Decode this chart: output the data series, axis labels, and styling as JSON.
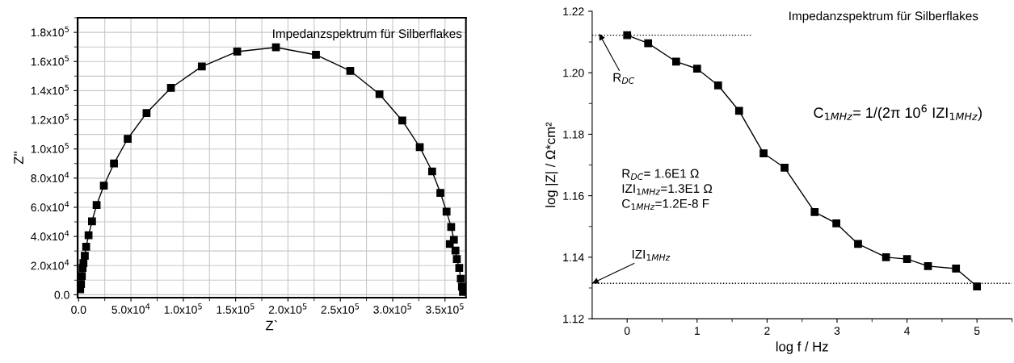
{
  "chart_data": [
    {
      "type": "line",
      "title": "Impedanzspektrum für Silberflakes",
      "xlabel": "Z`",
      "ylabel": "Z''",
      "xlim": [
        -1000,
        370000
      ],
      "ylim": [
        -2000,
        190000
      ],
      "grid": true,
      "marker": "square",
      "line_style": "solid",
      "xticks": [
        {
          "value": 0,
          "label": "0.0"
        },
        {
          "value": 50000,
          "label": "5.0x10$^{4}$"
        },
        {
          "value": 100000,
          "label": "1.0x10$^{5}$"
        },
        {
          "value": 150000,
          "label": "1.5x10$^{5}$"
        },
        {
          "value": 200000,
          "label": "2.0x10$^{5}$"
        },
        {
          "value": 250000,
          "label": "2.5x10$^{5}$"
        },
        {
          "value": 300000,
          "label": "3.0x10$^{5}$"
        },
        {
          "value": 350000,
          "label": "3.5x10$^{5}$"
        }
      ],
      "yticks": [
        {
          "value": 0,
          "label": "0.0"
        },
        {
          "value": 20000,
          "label": "2.0x10$^{4}$"
        },
        {
          "value": 40000,
          "label": "4.0x10$^{4}$"
        },
        {
          "value": 60000,
          "label": "6.0x10$^{4}$"
        },
        {
          "value": 80000,
          "label": "8.0x10$^{4}$"
        },
        {
          "value": 100000,
          "label": "1.0x10$^{5}$"
        },
        {
          "value": 120000,
          "label": "1.2x10$^{5}$"
        },
        {
          "value": 140000,
          "label": "1.4x10$^{5}$"
        },
        {
          "value": 160000,
          "label": "1.6x10$^{5}$"
        },
        {
          "value": 180000,
          "label": "1.8x10$^{5}$"
        }
      ],
      "series": [
        {
          "color": "#000000",
          "x": [
            1500,
            2300,
            3100,
            3800,
            4600,
            5900,
            7200,
            9500,
            12800,
            17200,
            24100,
            33800,
            46900,
            64900,
            88200,
            117700,
            151500,
            188500,
            226700,
            259500,
            287400,
            309200,
            325900,
            337700,
            345600,
            351500,
            355900,
            358500,
            354600,
            360000,
            361300,
            363600,
            365100,
            366200,
            367200
          ],
          "values": [
            3700,
            7400,
            12900,
            18400,
            21700,
            26700,
            32900,
            40800,
            50400,
            61600,
            74800,
            90100,
            107000,
            124700,
            141900,
            156600,
            166800,
            169700,
            164600,
            153600,
            137600,
            119500,
            101300,
            84600,
            69900,
            57000,
            46500,
            37700,
            34800,
            30300,
            24500,
            18400,
            11000,
            5500,
            1900
          ]
        }
      ]
    },
    {
      "type": "line",
      "title": "Impedanzspektrum für Silberflakes",
      "xlabel": "log f / Hz",
      "ylabel": "log |Z| / Ω*cm²",
      "xlim": [
        -0.5,
        5.5
      ],
      "ylim": [
        1.12,
        1.22
      ],
      "grid": false,
      "xticks": [
        0,
        1,
        2,
        3,
        4,
        5
      ],
      "yticks": [
        {
          "value": 1.12,
          "label": "1.12"
        },
        {
          "value": 1.14,
          "label": "1.14"
        },
        {
          "value": 1.16,
          "label": "1.16"
        },
        {
          "value": 1.18,
          "label": "1.18"
        },
        {
          "value": 1.2,
          "label": "1.20"
        },
        {
          "value": 1.22,
          "label": "1.22"
        }
      ],
      "series": [
        {
          "color": "#000000",
          "marker": "square",
          "line_style": "solid",
          "x": [
            0,
            0.3,
            0.7,
            1.0,
            1.3,
            1.6,
            1.95,
            2.25,
            2.68,
            2.99,
            3.3,
            3.7,
            4.0,
            4.3,
            4.7,
            5.0
          ],
          "values": [
            1.2122,
            1.2096,
            1.2036,
            1.2013,
            1.1959,
            1.1876,
            1.1738,
            1.1691,
            1.1547,
            1.151,
            1.1443,
            1.14,
            1.1394,
            1.1371,
            1.1363,
            1.1305
          ]
        },
        {
          "color": "#000000",
          "marker": "none",
          "line_style": "dotted",
          "x": [
            -0.5,
            1.79
          ],
          "values": [
            1.2122,
            1.2122
          ]
        }
      ],
      "ref_lines": [
        {
          "axis": "y",
          "value": 1.1315,
          "line_style": "dotted",
          "color": "#000000"
        }
      ],
      "annotations": [
        {
          "text": "R$_{DC}$",
          "x": -0.4,
          "y": 1.2127
        },
        {
          "text": "IZI$_{1MHz}$",
          "x": -0.5,
          "y": 1.1315
        },
        "C$_{1MHz}$= 1/(2π 10$^{6}$ IZI$_{1MHz}$)",
        "R$_{DC}$= 1.6E1 Ω\nIZI$_{1MHz}$=1.3E1 Ω\nC$_{1MHz}$=1.2E-8 F"
      ]
    }
  ]
}
